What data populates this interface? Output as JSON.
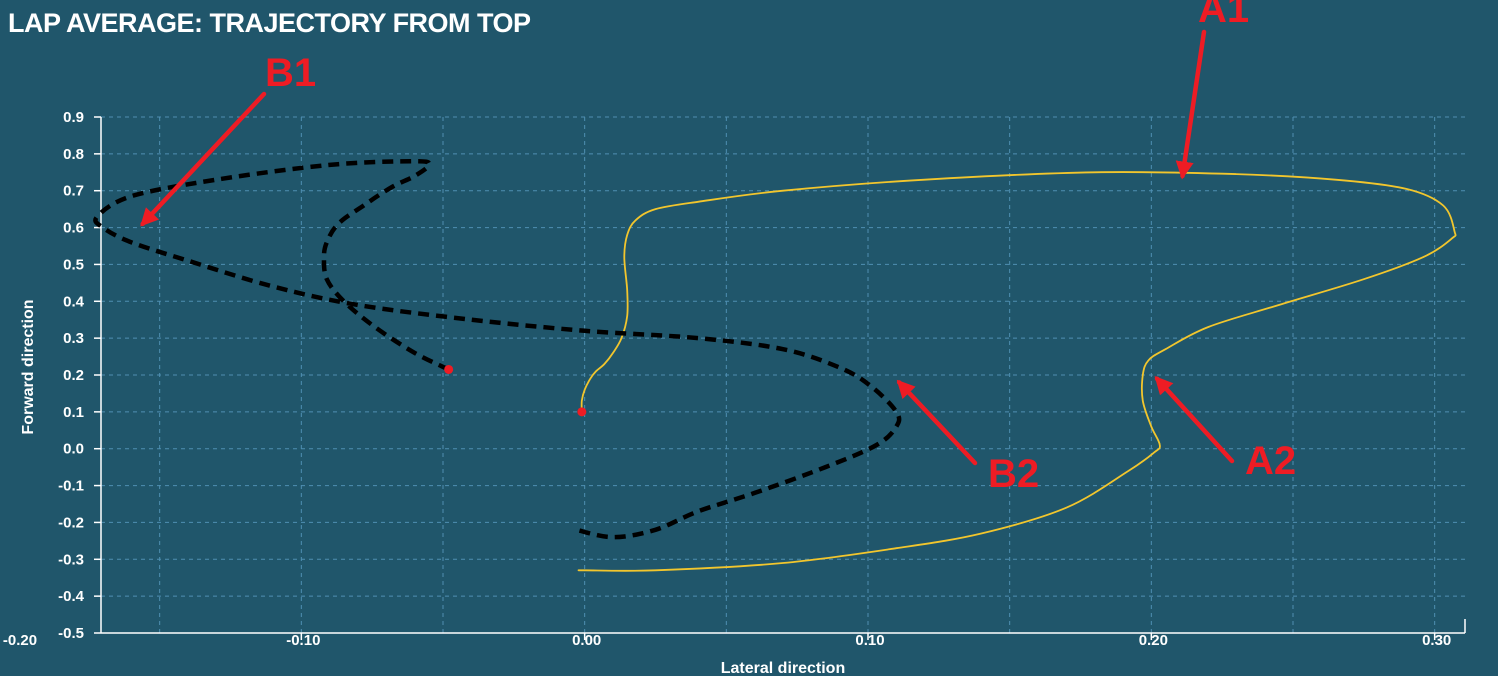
{
  "chart_data": {
    "type": "line",
    "title": "LAP AVERAGE: TRAJECTORY FROM TOP",
    "xlabel": "Lateral direction",
    "ylabel": "Forward direction",
    "xlim": [
      -0.2,
      0.31
    ],
    "ylim": [
      -0.5,
      0.9
    ],
    "x_ticks": [
      -0.2,
      -0.1,
      0.0,
      0.1,
      0.2,
      0.3
    ],
    "x_tick_labels": [
      "-0.20",
      "-0.10",
      "0.00",
      "0.10",
      "0.20",
      "0.30"
    ],
    "y_ticks": [
      -0.5,
      -0.4,
      -0.3,
      -0.2,
      -0.1,
      0.0,
      0.1,
      0.2,
      0.3,
      0.4,
      0.5,
      0.6,
      0.7,
      0.8,
      0.9
    ],
    "y_tick_labels": [
      "-0.5",
      "-0.4",
      "-0.3",
      "-0.2",
      "-0.1",
      "0.0",
      "0.1",
      "0.2",
      "0.3",
      "0.4",
      "0.5",
      "0.6",
      "0.7",
      "0.8",
      "0.9"
    ],
    "grid": true,
    "series": [
      {
        "color": "#f2c62d",
        "style": "solid",
        "x": [
          -0.001,
          -0.001,
          0.0,
          0.002,
          0.004,
          0.007,
          0.01,
          0.013,
          0.015,
          0.015,
          0.014,
          0.015,
          0.018,
          0.025,
          0.04,
          0.07,
          0.12,
          0.18,
          0.23,
          0.265,
          0.29,
          0.303,
          0.307,
          0.306,
          0.296,
          0.275,
          0.245,
          0.22,
          0.205,
          0.199,
          0.197,
          0.197,
          0.2,
          0.203,
          0.201,
          0.192,
          0.17,
          0.14,
          0.11,
          0.07,
          0.025,
          0.0,
          -0.001
        ],
        "y": [
          0.1,
          0.13,
          0.16,
          0.19,
          0.21,
          0.23,
          0.26,
          0.3,
          0.36,
          0.43,
          0.52,
          0.58,
          0.62,
          0.65,
          0.67,
          0.7,
          0.73,
          0.75,
          0.745,
          0.73,
          0.705,
          0.66,
          0.59,
          0.57,
          0.52,
          0.46,
          0.39,
          0.33,
          0.27,
          0.24,
          0.2,
          0.13,
          0.06,
          0.01,
          -0.01,
          -0.06,
          -0.16,
          -0.23,
          -0.27,
          -0.31,
          -0.33,
          -0.33,
          -0.33
        ]
      },
      {
        "color": "#000000",
        "style": "dashed",
        "x": [
          -0.048,
          -0.06,
          -0.074,
          -0.085,
          -0.091,
          -0.092,
          -0.091,
          -0.087,
          -0.078,
          -0.068,
          -0.06,
          -0.055,
          -0.06,
          -0.09,
          -0.13,
          -0.16,
          -0.172,
          -0.17,
          -0.16,
          -0.14,
          -0.11,
          -0.08,
          -0.04,
          0.0,
          0.04,
          0.07,
          0.09,
          0.101,
          0.11,
          0.11,
          0.103,
          0.085,
          0.06,
          0.04,
          0.025,
          0.01,
          -0.003
        ],
        "y": [
          0.215,
          0.26,
          0.33,
          0.4,
          0.46,
          0.52,
          0.56,
          0.61,
          0.66,
          0.71,
          0.74,
          0.77,
          0.78,
          0.77,
          0.73,
          0.685,
          0.63,
          0.6,
          0.56,
          0.51,
          0.44,
          0.39,
          0.35,
          0.32,
          0.3,
          0.27,
          0.22,
          0.17,
          0.1,
          0.06,
          0.01,
          -0.05,
          -0.12,
          -0.17,
          -0.22,
          -0.24,
          -0.22
        ]
      }
    ],
    "start_markers": [
      {
        "x": -0.001,
        "y": 0.1,
        "color": "#ee1c24"
      },
      {
        "x": -0.048,
        "y": 0.215,
        "color": "#ee1c24"
      }
    ],
    "annotations": [
      {
        "label": "A1",
        "point_x": 0.211,
        "point_y": 0.74
      },
      {
        "label": "A2",
        "point_x": 0.202,
        "point_y": 0.19
      },
      {
        "label": "B1",
        "point_x": -0.156,
        "point_y": 0.61
      },
      {
        "label": "B2",
        "point_x": 0.111,
        "point_y": 0.18
      }
    ]
  }
}
